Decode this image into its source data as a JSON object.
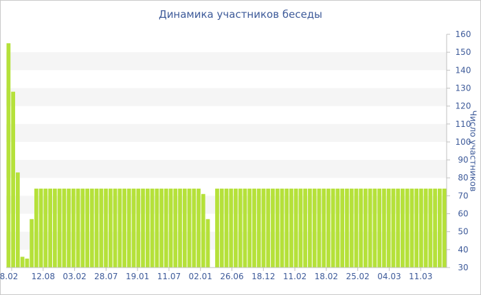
{
  "chart_data": {
    "type": "bar",
    "title": "Динамика участников беседы",
    "ylabel": "Число участников",
    "xlabel": "",
    "ylim": [
      30,
      160
    ],
    "yticks": [
      30,
      40,
      50,
      60,
      70,
      80,
      90,
      100,
      110,
      120,
      130,
      140,
      150,
      160
    ],
    "y_axis_side": "right",
    "grid": "alternating horizontal bands",
    "x_tick_labels": [
      "8.02",
      "12.08",
      "03.02",
      "28.07",
      "19.01",
      "11.07",
      "02.01",
      "26.06",
      "18.12",
      "11.02",
      "18.02",
      "25.02",
      "04.03",
      "11.03"
    ],
    "series": [
      {
        "values": [
          155,
          128,
          83,
          36,
          35,
          57,
          74,
          74,
          74,
          74,
          74,
          74,
          74,
          74,
          74,
          74,
          74,
          74,
          74,
          74,
          74,
          74,
          74,
          74,
          74,
          74,
          74,
          74,
          74,
          74,
          74,
          74,
          74,
          74,
          74,
          74,
          74,
          74,
          74,
          74,
          74,
          74,
          71,
          57,
          null,
          74,
          74,
          74,
          74,
          74,
          74,
          74,
          74,
          74,
          74,
          74,
          74,
          74,
          74,
          74,
          74,
          74,
          74,
          74,
          74,
          74,
          74,
          74,
          74,
          74,
          74,
          74,
          74,
          74,
          74,
          74,
          74,
          74,
          74,
          74,
          74,
          74,
          74,
          74,
          74,
          74,
          74,
          74,
          74,
          74,
          74,
          74,
          74,
          74,
          74
        ],
        "color": "#b5e13a"
      }
    ]
  }
}
